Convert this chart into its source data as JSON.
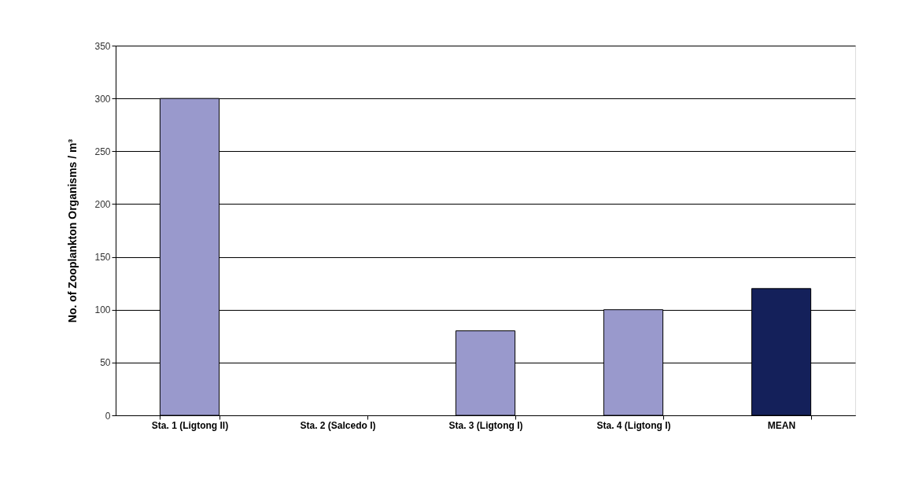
{
  "chart_data": {
    "type": "bar",
    "ylabel": "No. of Zooplankton Organisms / m³",
    "categories": [
      "Sta. 1 (Ligtong II)",
      "Sta. 2 (Salcedo I)",
      "Sta. 3 (Ligtong I)",
      "Sta. 4 (Ligtong I)",
      "MEAN"
    ],
    "values": [
      300,
      0,
      80,
      100,
      120
    ],
    "colors": [
      "#9999cc",
      "#9999cc",
      "#9999cc",
      "#9999cc",
      "#14205a"
    ],
    "ylim": [
      0,
      350
    ],
    "yticks": [
      0,
      50,
      100,
      150,
      200,
      250,
      300,
      350
    ],
    "grid": "y",
    "legend": false
  }
}
